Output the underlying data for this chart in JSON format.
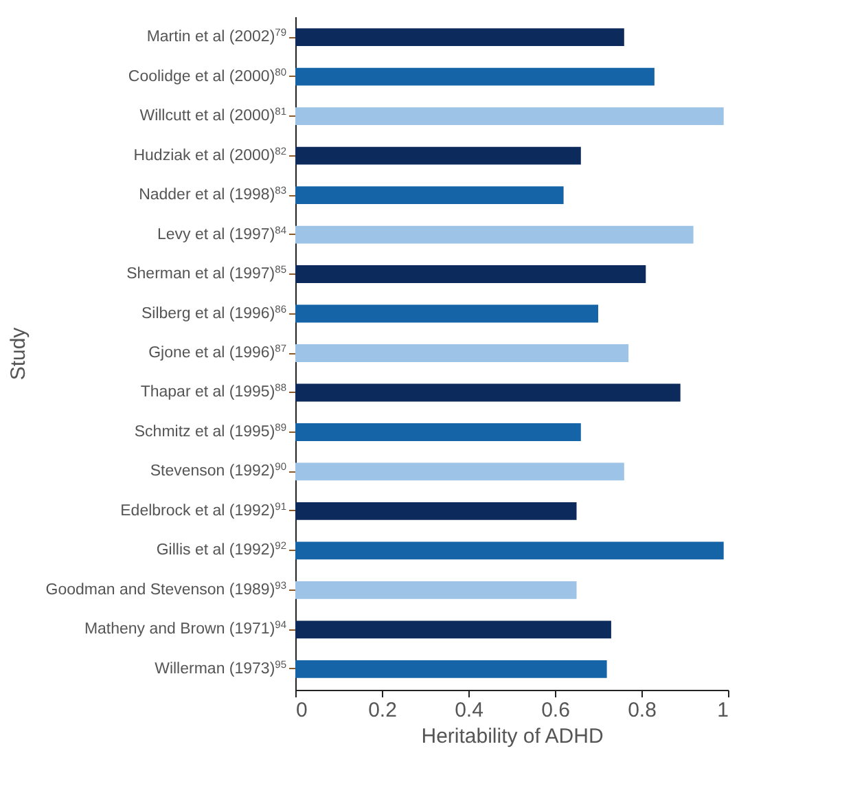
{
  "chart_data": {
    "type": "bar",
    "orientation": "horizontal",
    "xlabel": "Heritability of ADHD",
    "ylabel": "Study",
    "categories": [
      "Martin et al (2002)$^{79}$",
      "Coolidge et al (2000)$^{80}$",
      "Willcutt et al (2000)$^{81}$",
      "Hudziak et al (2000)$^{82}$",
      "Nadder et al (1998)$^{83}$",
      "Levy et al (1997)$^{84}$",
      "Sherman et al (1997)$^{85}$",
      "Silberg et al (1996)$^{86}$",
      "Gjone et al (1996)$^{87}$",
      "Thapar et al (1995)$^{88}$",
      "Schmitz et al (1995)$^{89}$",
      "Stevenson (1992)$^{90}$",
      "Edelbrock et al (1992)$^{91}$",
      "Gillis et al (1992)$^{92}$",
      "Goodman and Stevenson (1989)$^{93}$",
      "Matheny and Brown (1971)$^{94}$",
      "Willerman (1973)$^{95}$"
    ],
    "values": [
      0.76,
      0.83,
      0.99,
      0.66,
      0.62,
      0.92,
      0.81,
      0.7,
      0.77,
      0.89,
      0.66,
      0.76,
      0.65,
      0.99,
      0.65,
      0.73,
      0.72
    ],
    "colors": [
      "#0d2a5c",
      "#1664a8",
      "#9dc3e6",
      "#0d2a5c",
      "#1664a8",
      "#9dc3e6",
      "#0d2a5c",
      "#1664a8",
      "#9dc3e6",
      "#0d2a5c",
      "#1664a8",
      "#9dc3e6",
      "#0d2a5c",
      "#1664a8",
      "#9dc3e6",
      "#0d2a5c",
      "#1664a8"
    ],
    "xlim": [
      0,
      1
    ],
    "xticks": [
      0,
      0.2,
      0.4,
      0.6,
      0.8,
      1
    ],
    "grid": false
  }
}
